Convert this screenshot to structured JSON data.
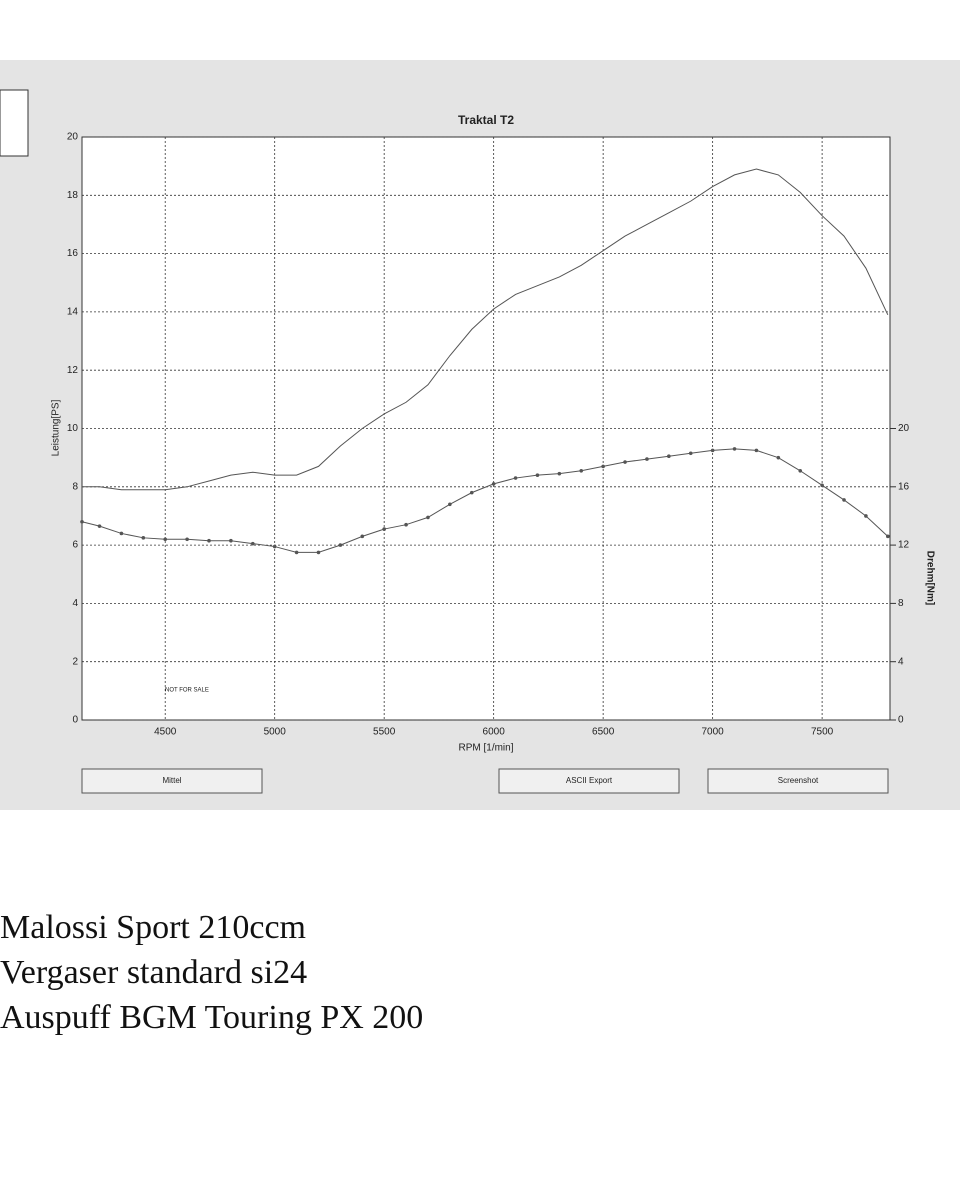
{
  "chart_data": {
    "type": "line",
    "title": "Traktal T2",
    "x_label": "RPM [1/min]",
    "y_label": "Leistung[PS]",
    "y2_label": "Drehm[Nm]",
    "annotation": "NOT FOR SALE",
    "x": [
      4120,
      4200,
      4300,
      4400,
      4500,
      4600,
      4700,
      4800,
      4900,
      5000,
      5100,
      5200,
      5300,
      5400,
      5500,
      5600,
      5700,
      5800,
      5900,
      6000,
      6100,
      6200,
      6300,
      6400,
      6500,
      6600,
      6700,
      6800,
      6900,
      7000,
      7100,
      7200,
      7300,
      7400,
      7500,
      7600,
      7700,
      7800
    ],
    "series": [
      {
        "color": "#555555",
        "values": [
          8.0,
          8.0,
          7.9,
          7.9,
          7.9,
          8.0,
          8.2,
          8.4,
          8.5,
          8.4,
          8.4,
          8.7,
          9.4,
          10.0,
          10.5,
          10.9,
          11.5,
          12.5,
          13.4,
          14.1,
          14.6,
          14.9,
          15.2,
          15.6,
          16.1,
          16.6,
          17.0,
          17.4,
          17.8,
          18.3,
          18.7,
          18.9,
          18.7,
          18.1,
          17.3,
          16.6,
          15.5,
          13.9
        ]
      },
      {
        "color": "#555555",
        "axis": "y2",
        "markers": true,
        "values": [
          13.6,
          13.3,
          12.8,
          12.5,
          12.4,
          12.4,
          12.3,
          12.3,
          12.1,
          11.9,
          11.5,
          11.5,
          12.0,
          12.6,
          13.1,
          13.4,
          13.9,
          14.8,
          15.6,
          16.2,
          16.6,
          16.8,
          16.9,
          17.1,
          17.4,
          17.7,
          17.9,
          18.1,
          18.3,
          18.5,
          18.6,
          18.5,
          18.0,
          17.1,
          16.1,
          15.1,
          14.0,
          12.6
        ]
      }
    ],
    "xlim": [
      4120,
      7810
    ],
    "xticks": [
      4500,
      5000,
      5500,
      6000,
      6500,
      7000,
      7500
    ],
    "ylim": [
      0,
      20
    ],
    "yticks": [
      0,
      2,
      4,
      6,
      8,
      10,
      12,
      14,
      16,
      18,
      20
    ],
    "y2lim": [
      0,
      40
    ],
    "y2ticks": [
      0,
      4,
      8,
      12,
      16,
      20
    ],
    "grid": true
  },
  "buttons": [
    "Mittel",
    "ASCII Export",
    "Screenshot"
  ],
  "notes": [
    "Malossi Sport 210ccm",
    "Vergaser standard si24",
    "Auspuff BGM Touring PX 200"
  ]
}
